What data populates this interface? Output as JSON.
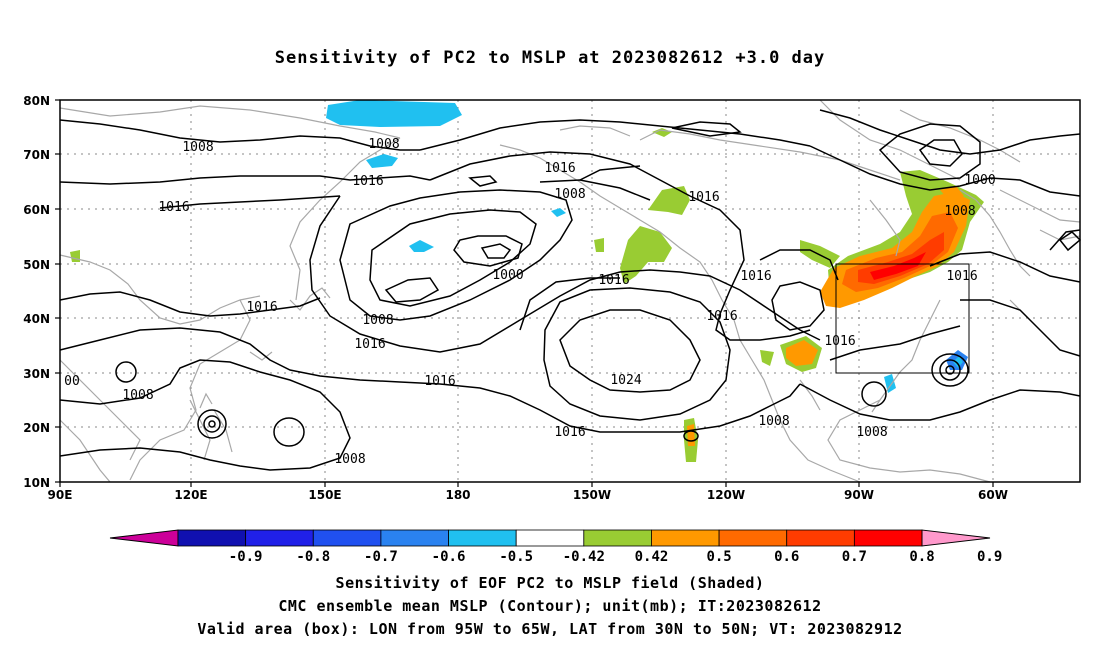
{
  "title": "Sensitivity of PC2 to MSLP at 2023082612 +3.0 day",
  "lat_labels": [
    "80N",
    "70N",
    "60N",
    "50N",
    "40N",
    "30N",
    "20N",
    "10N"
  ],
  "lon_labels": [
    "90E",
    "120E",
    "150E",
    "180",
    "150W",
    "120W",
    "90W",
    "60W"
  ],
  "contour_labels": [
    "1008",
    "1016",
    "1016",
    "1016",
    "1008",
    "1016",
    "1000",
    "1008",
    "1016",
    "1016",
    "1016",
    "1016",
    "1008",
    "1016",
    "1016",
    "1016",
    "1024",
    "1016",
    "1008",
    "1008",
    "1008",
    "1000",
    "1008",
    "1016",
    "1016",
    "00",
    "1008"
  ],
  "colorbar": {
    "labels": [
      "-0.9",
      "-0.8",
      "-0.7",
      "-0.6",
      "-0.5",
      "-0.42",
      "0.42",
      "0.5",
      "0.6",
      "0.7",
      "0.8",
      "0.9"
    ],
    "colors": [
      "#cc0099",
      "#1010b0",
      "#2020e8",
      "#2050f0",
      "#2a82f0",
      "#20c0f0",
      "#ffffff",
      "#99cc33",
      "#ff9900",
      "#ff6a00",
      "#ff3c00",
      "#ff0000",
      "#ff99cc"
    ]
  },
  "captions": [
    "Sensitivity of EOF PC2 to MSLP field (Shaded)",
    "CMC ensemble mean MSLP (Contour); unit(mb); IT:2023082612",
    "Valid area (box): LON from 95W to 65W, LAT from 30N to 50N; VT: 2023082912"
  ]
}
